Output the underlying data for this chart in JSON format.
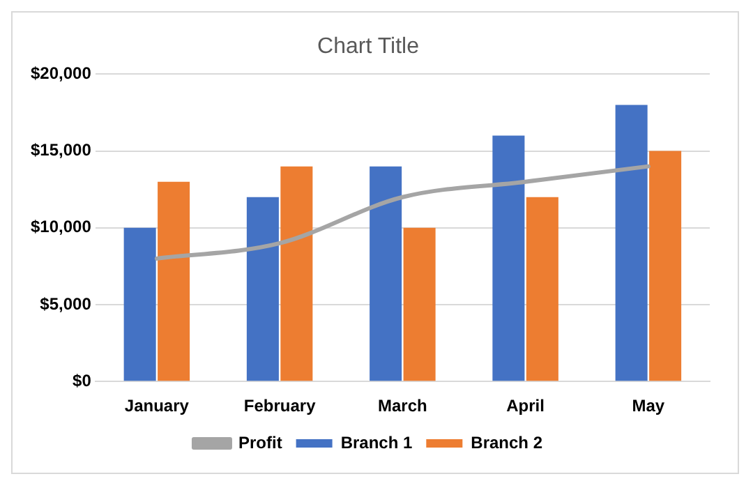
{
  "chart_data": {
    "type": "bar",
    "title": "Chart Title",
    "categories": [
      "January",
      "February",
      "March",
      "April",
      "May"
    ],
    "series": [
      {
        "name": "Branch 1",
        "color": "#4472c4",
        "values": [
          10000,
          12000,
          14000,
          16000,
          18000
        ]
      },
      {
        "name": "Branch 2",
        "color": "#ed7d31",
        "values": [
          13000,
          14000,
          10000,
          12000,
          15000
        ]
      },
      {
        "name": "Profit",
        "type": "line",
        "color": "#a5a5a5",
        "values": [
          8000,
          9000,
          12000,
          13000,
          14000
        ]
      }
    ],
    "ylim": [
      0,
      20000
    ],
    "yticks": [
      {
        "value": 0,
        "label": "$0"
      },
      {
        "value": 5000,
        "label": "$5,000"
      },
      {
        "value": 10000,
        "label": "$10,000"
      },
      {
        "value": 15000,
        "label": "$15,000"
      },
      {
        "value": 20000,
        "label": "$20,000"
      }
    ],
    "grid": "y",
    "legend": "bottom",
    "marker": "none"
  }
}
